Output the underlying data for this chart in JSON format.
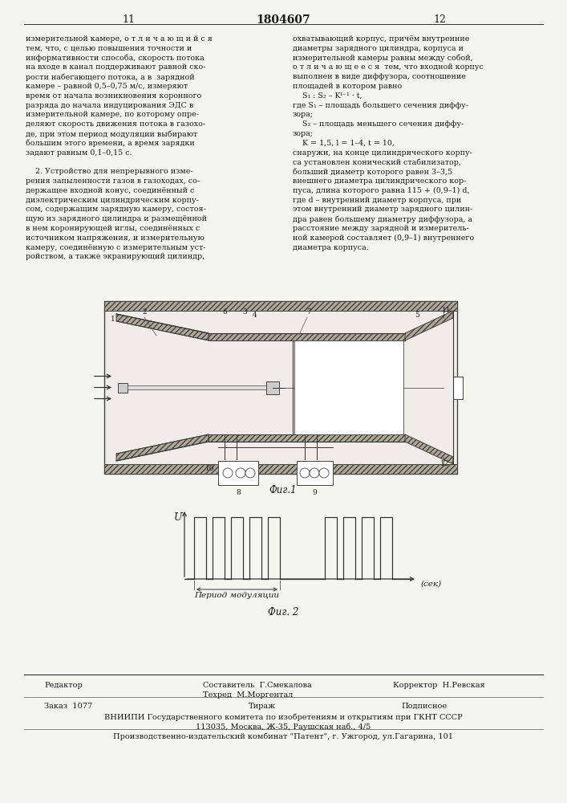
{
  "page_number_left": "11",
  "page_number_center": "1804607",
  "page_number_right": "12",
  "background_color": "#f5f5f0",
  "text_color": "#1a1a1a",
  "col1_text": [
    "измерительной камере, о т л и ч а ю щ и й с я",
    "тем, что, с целью повышения точности и",
    "информативности способа, скорость потока",
    "на входе в канал поддерживают равной ско-",
    "рости набегающего потока, а в  зарядной",
    "камере – равной 0,5–0,75 м/с, измеряют",
    "время от начала возникновения коронного",
    "разряда до начала индуцирования ЭДС в",
    "измерительной камере, по которому опре-",
    "деляют скорость движения потока в газохо-",
    "де, при этом период модуляции выбирают",
    "большим этого времени, а время зарядки",
    "задают равным 0,1–0,15 с.",
    "",
    "    2. Устройство для непрерывного изме-",
    "рения запыленности газов в газоходах, со-",
    "держащее входной конус, соединённый с",
    "диэлектрическим цилиндрическим корпу-",
    "сом, содержащим зарядную камеру, состоя-",
    "щую из зарядного цилиндра и размещённой",
    "в нем коронирующей иглы, соединённых с",
    "источником напряжения, и измерительную",
    "камеру, соединённую с измерительным уст-",
    "ройством, а также экранирующий цилиндр,"
  ],
  "col2_text": [
    "охватывающий корпус, причём внутренние",
    "диаметры зарядного цилиндра, корпуса и",
    "измерительной камеры равны между собой,",
    "о т л и ч а ю щ е е с я  тем, что входной корпус",
    "выполнен в виде диффузора, соотношение",
    "площадей в котором равно",
    "    S₁ : S₂ – Kˡ⁻¹ · t,",
    "где S₁ – площадь большего сечения диффу-",
    "зора;",
    "    S₂ – площадь меньшего сечения диффу-",
    "зора;",
    "    K = 1,5, l = 1–4, t = 10,",
    "снаружи, на конце цилиндрического корпу-",
    "са установлен конический стабилизатор,",
    "больший диаметр которого равен 3–3,5",
    "внешнего диаметра цилиндрического кор-",
    "пуса, длина которого равна 115 + (0,9–1) d,",
    "где d – внутренний диаметр корпуса, при",
    "этом внутренний диаметр зарядного цилин-",
    "дра равен большему диаметру диффузора, а",
    "расстояние между зарядной и измеритель-",
    "ной камерой составляет (0,9–1) внутреннего",
    "диаметра корпуса."
  ],
  "fig1_label": "Фиг.1",
  "fig2_label": "Фиг. 2",
  "fig2_xlabel": "Период модуляции",
  "fig2_xunit": "(сек)",
  "fig2_ylabel": "U",
  "footer_editor": "Редактор",
  "footer_compiler": "Составитель  Г.Смекалова",
  "footer_tech": "Техред  М.Моргентал",
  "footer_corrector": "Корректор  Н.Ревская",
  "footer_order": "Заказ  1077",
  "footer_circulation": "Тираж",
  "footer_subscription": "Подписное",
  "footer_vniip": "ВНИИПИ Государственного комитета по изобретениям и открытиям при ГКНТ СССР",
  "footer_address": "113035, Москва, Ж-35, Раушская наб., 4/5",
  "footer_production": "Производственно-издательский комбинат \"Патент\", г. Ужгород, ул.Гагарина, 101"
}
